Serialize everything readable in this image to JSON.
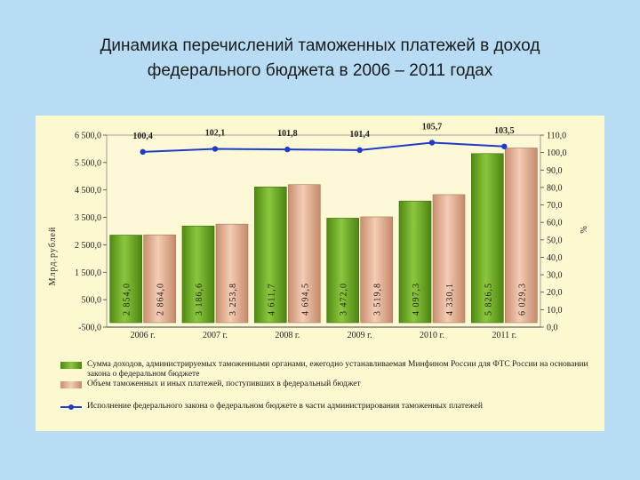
{
  "title": {
    "line1": "Динамика перечислений таможенных платежей в доход",
    "line2": "федерального бюджета в 2006 – 2011 годах"
  },
  "colors": {
    "slide_bg": "#b7dcf3",
    "panel_bg": "#fcf8cf",
    "series_green": "#66a61e",
    "series_tan": "#e8b79b",
    "line": "#1f3cc8"
  },
  "chart_data": {
    "type": "bar",
    "categories": [
      "2006 г.",
      "2007 г.",
      "2008 г.",
      "2009 г.",
      "2010 г.",
      "2011 г."
    ],
    "ylabel": "Млрд.рублей",
    "y2label": "%",
    "ylim": [
      -500,
      6500
    ],
    "y_ticks": [
      "6 500,0",
      "5 500,0",
      "4 500,0",
      "3 500,0",
      "2 500,0",
      "1 500,0",
      "500,0",
      "-500,0"
    ],
    "y2lim": [
      0,
      110
    ],
    "y2_ticks": [
      "110,0",
      "100,0",
      "90,0",
      "80,0",
      "70,0",
      "60,0",
      "50,0",
      "40,0",
      "30,0",
      "20,0",
      "10,0",
      "0,0"
    ],
    "series": [
      {
        "values": [
          2854.0,
          3186.6,
          4611.7,
          3472.0,
          4097.3,
          5826.5
        ],
        "labels": [
          "2 854,0",
          "3 186,6",
          "4 611,7",
          "3 472,0",
          "4 097,3",
          "5 826,5"
        ]
      },
      {
        "values": [
          2864.0,
          3253.8,
          4694.5,
          3519.8,
          4330.1,
          6029.3
        ],
        "labels": [
          "2 864,0",
          "3 253,8",
          "4 694,5",
          "3 519,8",
          "4 330,1",
          "6 029,3"
        ]
      },
      {
        "type": "line",
        "axis": "secondary",
        "values": [
          100.4,
          102.1,
          101.8,
          101.4,
          105.7,
          103.5
        ],
        "labels": [
          "100,4",
          "102,1",
          "101,8",
          "101,4",
          "105,7",
          "103,5"
        ]
      }
    ],
    "legend": [
      "Сумма доходов, администрируемых таможенными органами, ежегодно устанавливаемая Минфином России для ФТС России на основании закона о федеральном бюджете",
      "Объем таможенных и иных платежей, поступивших в федеральный бюджет",
      "Исполнение федерального закона о федеральном бюджете в части администрирования таможенных платежей"
    ],
    "legend_position": "bottom"
  }
}
